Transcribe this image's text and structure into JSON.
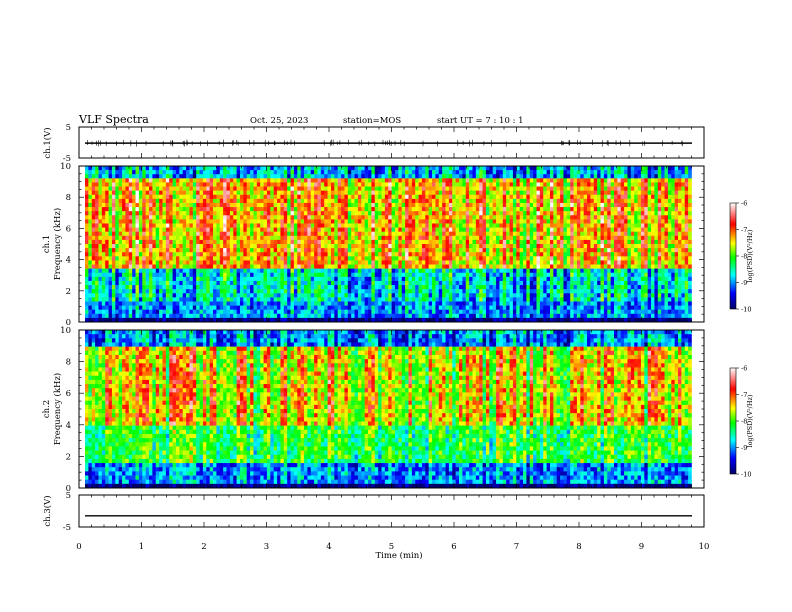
{
  "header": {
    "title": "VLF Spectra",
    "date": "Oct. 25, 2023",
    "station": "station=MOS",
    "start": "start  UT =   7 : 10 : 1"
  },
  "colors": {
    "colormap": [
      "#000066",
      "#0000ff",
      "#00ffff",
      "#00ff00",
      "#ffff00",
      "#ff0000",
      "#ffffff"
    ],
    "frame": "#000000"
  },
  "chart_data": [
    {
      "type": "line",
      "panel": "ch1-waveform",
      "ylabel": "ch.1(V)",
      "yticks": [
        "5",
        "-5"
      ],
      "ylim": [
        -5,
        5
      ],
      "xlim": [
        0,
        10
      ],
      "series": [
        {
          "values": [
            -0.2,
            -0.2
          ]
        }
      ]
    },
    {
      "type": "heatmap",
      "panel": "ch1-spectrogram",
      "ylabel": "Frequency (kHz)",
      "channel_label": "ch.1",
      "yticks": [
        "0",
        "2",
        "4",
        "6",
        "8",
        "10"
      ],
      "ylim": [
        0,
        10
      ],
      "xlim": [
        0,
        9.8
      ],
      "colorbar": {
        "label": "log(PSD)(V²/Hz)",
        "ticks": [
          "-6",
          "-7",
          "-8",
          "-9",
          "-10"
        ],
        "range": [
          -10,
          -6
        ]
      }
    },
    {
      "type": "heatmap",
      "panel": "ch2-spectrogram",
      "ylabel": "Frequency (kHz)",
      "channel_label": "ch.2",
      "yticks": [
        "0",
        "2",
        "4",
        "6",
        "8",
        "10"
      ],
      "ylim": [
        0,
        10
      ],
      "xlim": [
        0,
        9.8
      ],
      "colorbar": {
        "label": "log(PSD)(V²/Hz)",
        "ticks": [
          "-6",
          "-7",
          "-8",
          "-9",
          "-10"
        ],
        "range": [
          -10,
          -6
        ]
      }
    },
    {
      "type": "line",
      "panel": "ch3-waveform",
      "ylabel": "ch.3(V)",
      "yticks": [
        "5",
        "-5"
      ],
      "ylim": [
        -5,
        5
      ],
      "xlim": [
        0,
        10
      ],
      "series": [
        {
          "values": [
            -1.5,
            -1.5
          ]
        }
      ]
    }
  ],
  "xaxis": {
    "label": "Time  (min)",
    "ticks": [
      "0",
      "1",
      "2",
      "3",
      "4",
      "5",
      "6",
      "7",
      "8",
      "9",
      "10"
    ],
    "range": [
      0,
      10
    ]
  }
}
